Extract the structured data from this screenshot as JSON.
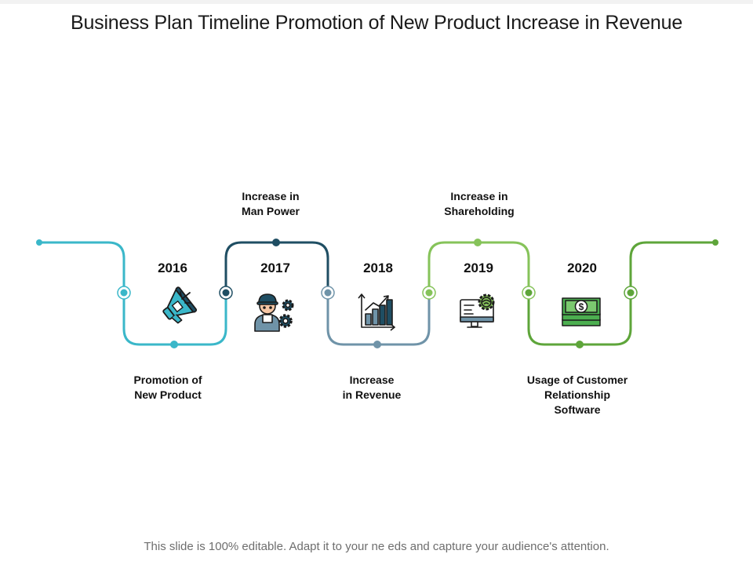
{
  "title": "Business Plan Timeline Promotion of New Product Increase in Revenue",
  "footer": "This slide is 100% editable. Adapt it to your ne eds and capture your audience's attention.",
  "colors": {
    "seg1": "#3ab7c9",
    "seg2": "#1f4e63",
    "seg3": "#6f93a8",
    "seg4": "#86c35a",
    "seg5": "#5ea53a",
    "icon_outline": "#1b1b1b",
    "money_green": "#4caf50"
  },
  "milestones": [
    {
      "year": "2016",
      "label": "Promotion of\nNew Product",
      "label_position": "below",
      "icon": "megaphone-icon"
    },
    {
      "year": "2017",
      "label": "Increase in\nMan Power",
      "label_position": "above",
      "icon": "worker-gears-icon"
    },
    {
      "year": "2018",
      "label": "Increase\nin Revenue",
      "label_position": "below",
      "icon": "growth-chart-icon"
    },
    {
      "year": "2019",
      "label": "Increase in\nShareholding",
      "label_position": "above",
      "icon": "monitor-gear-icon"
    },
    {
      "year": "2020",
      "label": "Usage of Customer\nRelationship\nSoftware",
      "label_position": "below",
      "icon": "money-stack-icon"
    }
  ]
}
